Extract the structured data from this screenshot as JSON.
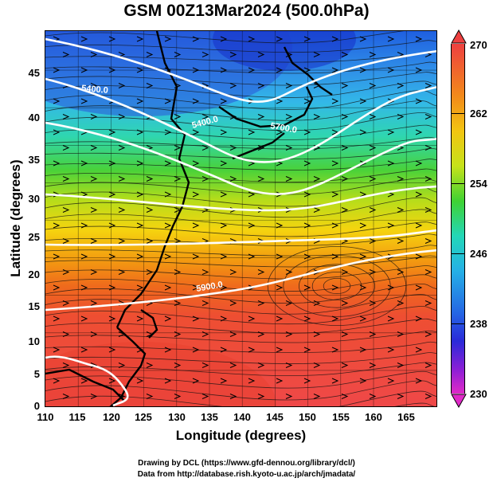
{
  "title": "GSM 00Z13Mar2024 (500.0hPa)",
  "x_axis": {
    "label": "Longitude (degrees)",
    "ticks": [
      "110",
      "115",
      "120",
      "125",
      "130",
      "135",
      "140",
      "145",
      "150",
      "155",
      "160",
      "165"
    ],
    "range": [
      110,
      169
    ]
  },
  "y_axis": {
    "label": "Latitude  (degrees)",
    "ticks": [
      "0",
      "5",
      "10",
      "15",
      "20",
      "25",
      "30",
      "35",
      "40",
      "45"
    ],
    "range": [
      0,
      50
    ]
  },
  "contour_labels": [
    "5400.0",
    "5700.0",
    "5900.0",
    "5400.0"
  ],
  "colorbar": {
    "ticks": [
      "270",
      "262",
      "254",
      "246",
      "238",
      "230"
    ],
    "range": [
      230,
      270
    ]
  },
  "credits": {
    "line1": "Drawing by DCL (https://www.gfd-dennou.org/library/dcl/)",
    "line2": "Data from http://database.rish.kyoto-u.ac.jp/arch/jmadata/"
  }
}
